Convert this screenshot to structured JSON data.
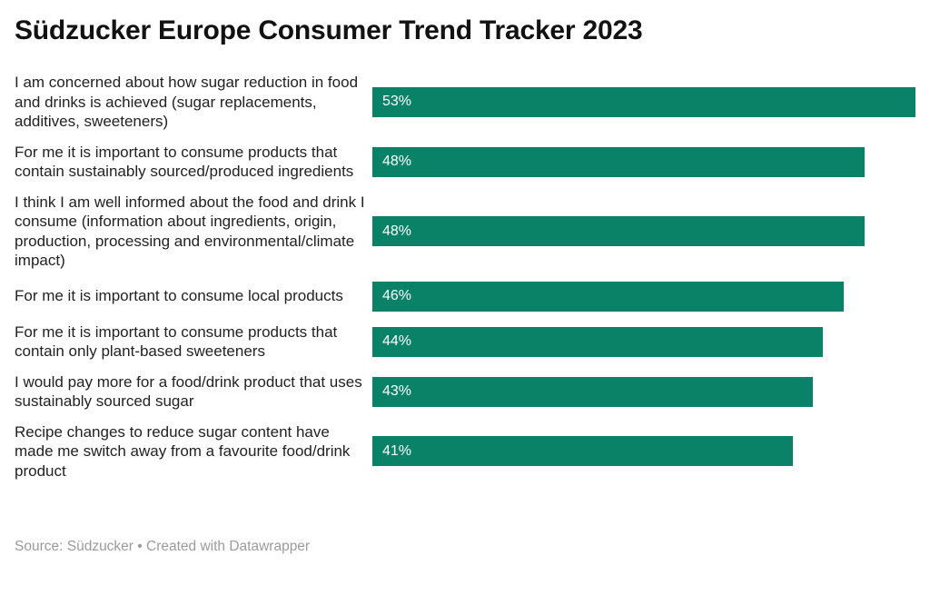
{
  "title": "Südzucker Europe Consumer Trend Tracker 2023",
  "chart_data": {
    "type": "bar",
    "orientation": "horizontal",
    "title": "Südzucker Europe Consumer Trend Tracker 2023",
    "categories": [
      "I am concerned about how sugar reduction in food and drinks is achieved (sugar replacements, additives, sweeteners)",
      "For me it is important to consume products that contain sustainably sourced/produced ingredients",
      "I think I am well informed about the food and drink I consume (information about ingredients, origin, production, processing and environmental/climate impact)",
      "For me it is important to consume local products",
      "For me it is important to consume products that contain only plant-based sweeteners",
      "I would pay more for a food/drink product that uses sustainably sourced sugar",
      "Recipe changes to reduce sugar content have made me switch away from a favourite food/drink product"
    ],
    "values": [
      53,
      48,
      48,
      46,
      44,
      43,
      41
    ],
    "value_labels": [
      "53%",
      "48%",
      "48%",
      "46%",
      "44%",
      "43%",
      "41%"
    ],
    "xlabel": "",
    "ylabel": "",
    "xlim": [
      0,
      53
    ],
    "grid": false,
    "legend": false,
    "bar_color": "#0a8268",
    "value_label_position": "inside-left"
  },
  "footer": {
    "source_prefix": "Source:",
    "source_name": "Südzucker",
    "separator": "•",
    "attribution": "Created with Datawrapper"
  }
}
